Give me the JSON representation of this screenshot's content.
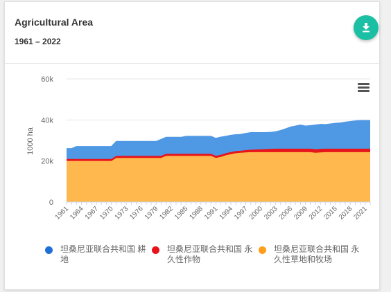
{
  "header": {
    "title": "Agricultural Area",
    "subtitle": "1961 – 2022"
  },
  "colors": {
    "accent": "#1bbfa3"
  },
  "icons": {
    "download": "download-icon",
    "menu": "hamburger-menu-icon"
  },
  "chart_data": {
    "type": "area",
    "stacked": true,
    "ylabel": "1000 ha",
    "ylim": [
      0,
      60000
    ],
    "yticks": [
      0,
      20000,
      40000,
      60000
    ],
    "ytick_labels": [
      "0",
      "20k",
      "40k",
      "60k"
    ],
    "xlim": [
      1961,
      2022
    ],
    "xticks": [
      1961,
      1964,
      1967,
      1970,
      1973,
      1976,
      1979,
      1982,
      1985,
      1988,
      1991,
      1994,
      1997,
      2000,
      2003,
      2006,
      2009,
      2012,
      2015,
      2018,
      2021
    ],
    "xtick_labels": [
      "1961",
      "1964",
      "1967",
      "1970",
      "1973",
      "1976",
      "1979",
      "1982",
      "1985",
      "1988",
      "1991",
      "1994",
      "1997",
      "2000",
      "2003",
      "2006",
      "2009",
      "2012",
      "2015",
      "2018",
      "2021"
    ],
    "legend_position": "bottom",
    "x": [
      1961,
      1962,
      1963,
      1964,
      1965,
      1966,
      1967,
      1968,
      1969,
      1970,
      1971,
      1972,
      1973,
      1974,
      1975,
      1976,
      1977,
      1978,
      1979,
      1980,
      1981,
      1982,
      1983,
      1984,
      1985,
      1986,
      1987,
      1988,
      1989,
      1990,
      1991,
      1992,
      1993,
      1994,
      1995,
      1996,
      1997,
      1998,
      1999,
      2000,
      2001,
      2002,
      2003,
      2004,
      2005,
      2006,
      2007,
      2008,
      2009,
      2010,
      2011,
      2012,
      2013,
      2014,
      2015,
      2016,
      2017,
      2018,
      2019,
      2020,
      2021,
      2022
    ],
    "series": [
      {
        "name": "坦桑尼亚联合共和国 永久性草地和牧场",
        "color": "#ffb84d",
        "values": [
          20000,
          20000,
          20000,
          20000,
          20000,
          20000,
          20000,
          20000,
          20000,
          20000,
          21500,
          21500,
          21500,
          21500,
          21500,
          21500,
          21500,
          21500,
          21500,
          21500,
          22500,
          22500,
          22500,
          22500,
          22500,
          22500,
          22500,
          22500,
          22500,
          22500,
          21500,
          22000,
          22800,
          23300,
          23800,
          24000,
          24200,
          24300,
          24300,
          24300,
          24300,
          24300,
          24300,
          24300,
          24300,
          24300,
          24300,
          24300,
          24300,
          24300,
          24000,
          24200,
          24300,
          24300,
          24300,
          24300,
          24300,
          24300,
          24300,
          24300,
          24300,
          24300
        ]
      },
      {
        "name": "坦桑尼亚联合共和国 永久性作物",
        "color": "#e8141b",
        "values": [
          1000,
          1000,
          1000,
          1000,
          1000,
          1000,
          1000,
          1000,
          1000,
          1000,
          1000,
          1000,
          1000,
          1000,
          1000,
          1000,
          1000,
          1000,
          1000,
          1000,
          1000,
          1000,
          1000,
          1000,
          1000,
          1000,
          1000,
          1000,
          1000,
          1000,
          1000,
          1000,
          1000,
          1000,
          1000,
          1000,
          1100,
          1200,
          1300,
          1400,
          1500,
          1600,
          1700,
          1700,
          1700,
          1700,
          1700,
          1700,
          1700,
          1700,
          1700,
          1700,
          1700,
          1700,
          1700,
          1700,
          1700,
          1700,
          1700,
          1700,
          1700,
          1700
        ]
      },
      {
        "name": "坦桑尼亚联合共和国 耕地",
        "color": "#4f98e4",
        "values": [
          5000,
          5000,
          6000,
          6000,
          6000,
          6000,
          6000,
          6000,
          6000,
          6000,
          7000,
          7000,
          7000,
          7000,
          7000,
          7000,
          7000,
          7000,
          7000,
          8000,
          8000,
          8000,
          8000,
          8000,
          8500,
          8500,
          8500,
          8500,
          8500,
          8500,
          8500,
          8600,
          8200,
          8200,
          8000,
          7900,
          8100,
          8300,
          8200,
          8100,
          8000,
          8000,
          8200,
          8800,
          9600,
          10500,
          11000,
          11500,
          11000,
          11200,
          11800,
          11900,
          11700,
          12000,
          12300,
          12500,
          12900,
          13200,
          13500,
          13700,
          13700,
          13700
        ]
      }
    ]
  },
  "legend": [
    {
      "label": "坦桑尼亚联合共和国 耕地",
      "color": "#1f6fd8"
    },
    {
      "label": "坦桑尼亚联合共和国 永久性作物",
      "color": "#e8141b"
    },
    {
      "label": "坦桑尼亚联合共和国 永久性草地和牧场",
      "color": "#ff9e1b"
    }
  ]
}
